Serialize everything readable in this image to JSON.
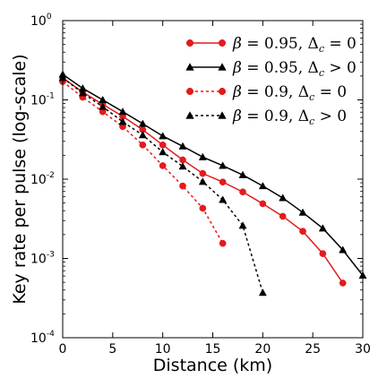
{
  "chart_data": {
    "type": "line",
    "title": "",
    "xlabel": "Distance (km)",
    "ylabel": "Key rate per pulse (log-scale)",
    "xlim": [
      0,
      30
    ],
    "ylim": [
      0.0001,
      1
    ],
    "yscale": "log",
    "x_ticks": [
      "0",
      "5",
      "10",
      "15",
      "20",
      "25",
      "30"
    ],
    "y_ticks": [
      {
        "base": "10",
        "exp": "0",
        "value": 1
      },
      {
        "base": "10",
        "exp": "-1",
        "value": 0.1
      },
      {
        "base": "10",
        "exp": "-2",
        "value": 0.01
      },
      {
        "base": "10",
        "exp": "-3",
        "value": 0.001
      },
      {
        "base": "10",
        "exp": "-4",
        "value": 0.0001
      }
    ],
    "grid": false,
    "legend_position": "top-right",
    "series": [
      {
        "name": "β = 0.95, Δc = 0",
        "legend": {
          "beta": "β",
          "eq1": " = 0.95,  ",
          "delta": "Δ",
          "sub": "c",
          "eq2": " = 0"
        },
        "color": "#e41a1c",
        "line": "solid",
        "marker": "circle",
        "x": [
          0,
          2,
          4,
          6,
          8,
          10,
          12,
          14,
          16,
          18,
          20,
          22,
          24,
          26,
          28
        ],
        "y": [
          0.19,
          0.125,
          0.088,
          0.062,
          0.042,
          0.027,
          0.0175,
          0.0118,
          0.0092,
          0.0069,
          0.0049,
          0.0034,
          0.0022,
          0.00115,
          0.00049
        ]
      },
      {
        "name": "β = 0.95, Δc > 0",
        "legend": {
          "beta": "β",
          "eq1": " = 0.95,  ",
          "delta": "Δ",
          "sub": "c",
          "eq2": " > 0"
        },
        "color": "#000000",
        "line": "solid",
        "marker": "triangle",
        "x": [
          0,
          2,
          4,
          6,
          8,
          10,
          12,
          14,
          16,
          18,
          20,
          22,
          24,
          26,
          28,
          30
        ],
        "y": [
          0.21,
          0.14,
          0.1,
          0.071,
          0.05,
          0.035,
          0.026,
          0.019,
          0.0148,
          0.0113,
          0.0082,
          0.0058,
          0.0038,
          0.0024,
          0.00128,
          0.00061
        ]
      },
      {
        "name": "β = 0.9, Δc = 0",
        "legend": {
          "beta": "β",
          "eq1": " = 0.9,  ",
          "delta": "Δ",
          "sub": "c",
          "eq2": " = 0"
        },
        "color": "#e41a1c",
        "line": "dashed",
        "marker": "circle",
        "x": [
          0,
          2,
          4,
          6,
          8,
          10,
          12,
          14,
          16
        ],
        "y": [
          0.17,
          0.108,
          0.071,
          0.046,
          0.027,
          0.0148,
          0.0082,
          0.0043,
          0.00155
        ]
      },
      {
        "name": "β = 0.9, Δc > 0",
        "legend": {
          "beta": "β",
          "eq1": " = 0.9,  ",
          "delta": "Δ",
          "sub": "c",
          "eq2": " > 0"
        },
        "color": "#000000",
        "line": "dashed",
        "marker": "triangle",
        "x": [
          0,
          2,
          4,
          6,
          8,
          10,
          12,
          14,
          16,
          18,
          20
        ],
        "y": [
          0.19,
          0.122,
          0.082,
          0.053,
          0.036,
          0.022,
          0.0145,
          0.0093,
          0.0055,
          0.0026,
          0.00037
        ]
      }
    ]
  }
}
